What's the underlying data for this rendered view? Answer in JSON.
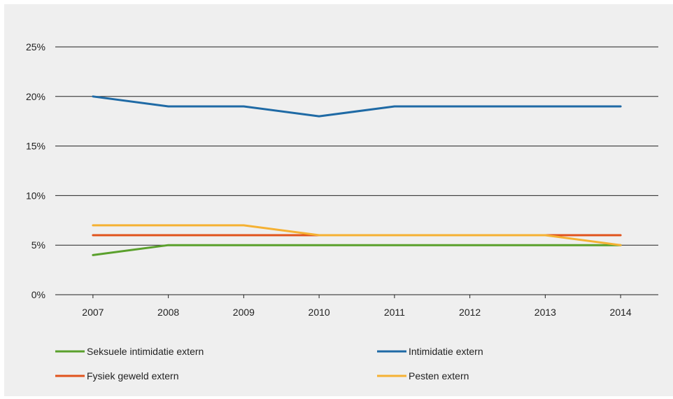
{
  "chart_data": {
    "type": "line",
    "title": "",
    "xlabel": "",
    "ylabel": "",
    "categories": [
      "2007",
      "2008",
      "2009",
      "2010",
      "2011",
      "2012",
      "2013",
      "2014"
    ],
    "y_ticks": [
      {
        "value": 0,
        "label": "0%"
      },
      {
        "value": 5,
        "label": "5%"
      },
      {
        "value": 10,
        "label": "10%"
      },
      {
        "value": 15,
        "label": "15%"
      },
      {
        "value": 20,
        "label": "20%"
      },
      {
        "value": 25,
        "label": "25%"
      }
    ],
    "ylim": [
      0,
      25
    ],
    "grid": true,
    "legend_position": "bottom",
    "series": [
      {
        "name": "Seksuele intimidatie extern",
        "color": "#5aa02c",
        "values": [
          4,
          5,
          5,
          5,
          5,
          5,
          5,
          5
        ]
      },
      {
        "name": "Intimidatie extern",
        "color": "#1f6aa5",
        "values": [
          20,
          19,
          19,
          18,
          19,
          19,
          19,
          19
        ]
      },
      {
        "name": "Fysiek geweld extern",
        "color": "#e0531c",
        "values": [
          6,
          6,
          6,
          6,
          6,
          6,
          6,
          6
        ]
      },
      {
        "name": "Pesten extern",
        "color": "#f5b133",
        "values": [
          7,
          7,
          7,
          6,
          6,
          6,
          6,
          5
        ]
      }
    ]
  }
}
